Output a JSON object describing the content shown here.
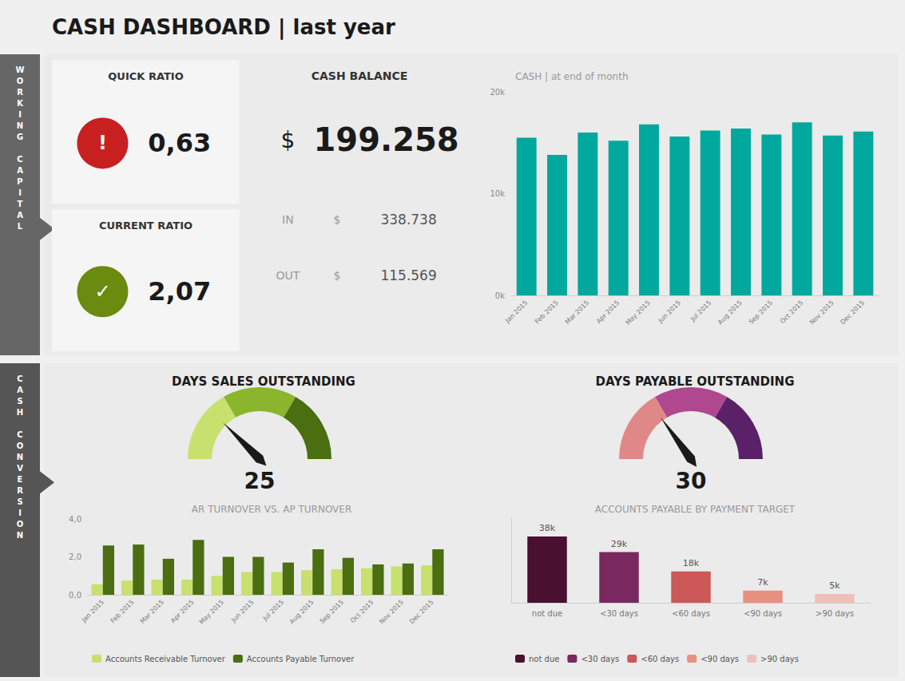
{
  "title": "CASH DASHBOARD | last year",
  "annotations": [
    "WORKING CAPITAL",
    "CASH CONVERSION"
  ],
  "chart_data": [
    {
      "type": "text",
      "title": "QUICK RATIO",
      "annotations": [
        "!",
        "0,63"
      ],
      "color": "#c82020"
    },
    {
      "type": "text",
      "title": "CURRENT RATIO",
      "annotations": [
        "✓",
        "2,07"
      ],
      "color": "#6a8a10"
    },
    {
      "type": "text",
      "title": "CASH BALANCE",
      "annotations": [
        "$",
        "199.258",
        "IN",
        "$",
        "338.738",
        "OUT",
        "$",
        "115.569"
      ]
    },
    {
      "type": "bar",
      "title": "CASH | at end of month",
      "categories": [
        "Jan 2015",
        "Feb 2015",
        "Mar 2015",
        "Apr 2015",
        "May 2015",
        "Jun 2015",
        "Jul 2015",
        "Aug 2015",
        "Sep 2015",
        "Oct 2015",
        "Nov 2015",
        "Dec 2015"
      ],
      "values": [
        15500,
        13800,
        16000,
        15200,
        16800,
        15600,
        16200,
        16400,
        15800,
        17000,
        15700,
        16100
      ],
      "color": "#00a89d",
      "ylim": [
        0,
        20000
      ],
      "yticks": [
        {
          "value": 0,
          "label": "0k"
        },
        {
          "value": 10000,
          "label": "10k"
        },
        {
          "value": 20000,
          "label": "20k"
        }
      ],
      "grid": false
    },
    {
      "type": "gauge",
      "title": "DAYS SALES OUTSTANDING",
      "values": [
        25
      ],
      "colors": [
        "#c8e06e",
        "#8ab52d",
        "#4a6e10"
      ],
      "ylim": [
        0,
        100
      ],
      "tick_labels": false
    },
    {
      "type": "bar",
      "title": "AR TURNOVER VS. AP TURNOVER",
      "categories": [
        "Jan 2015",
        "Feb 2015",
        "Mar 2015",
        "Apr 2015",
        "May 2015",
        "Jun 2015",
        "Jul 2015",
        "Aug 2015",
        "Sep 2015",
        "Oct 2015",
        "Nov 2015",
        "Dec 2015"
      ],
      "series": [
        {
          "name": "Accounts Receivable Turnover",
          "color": "#c8e06e",
          "values": [
            0.55,
            0.75,
            0.8,
            0.8,
            1.0,
            1.2,
            1.2,
            1.3,
            1.35,
            1.4,
            1.5,
            1.55
          ]
        },
        {
          "name": "Accounts Payable Turnover",
          "color": "#4a6e10",
          "values": [
            2.6,
            2.65,
            1.9,
            2.9,
            2.0,
            2.0,
            1.7,
            2.4,
            1.95,
            1.6,
            1.65,
            2.4
          ]
        }
      ],
      "ylim": [
        0,
        4.0
      ],
      "yticks": [
        {
          "value": 0,
          "label": "0,0"
        },
        {
          "value": 2,
          "label": "2,0"
        },
        {
          "value": 4,
          "label": "4,0"
        }
      ],
      "legend": "bottom",
      "grid": false
    },
    {
      "type": "gauge",
      "title": "DAYS PAYABLE OUTSTANDING",
      "values": [
        30
      ],
      "colors": [
        "#e08888",
        "#b04890",
        "#5a2068"
      ],
      "ylim": [
        0,
        100
      ],
      "tick_labels": false
    },
    {
      "type": "bar",
      "title": "ACCOUNTS PAYABLE BY PAYMENT TARGET",
      "categories": [
        "not due",
        "<30 days",
        "<60 days",
        "<90 days",
        ">90 days"
      ],
      "values": [
        38000,
        29000,
        18000,
        7000,
        5000
      ],
      "colors": [
        "#4a1030",
        "#7a2860",
        "#cc5858",
        "#e89080",
        "#f0c0b8"
      ],
      "value_labels": [
        "38k",
        "29k",
        "18k",
        "7k",
        "5k"
      ],
      "data_labels": true,
      "ylim": [
        0,
        48000
      ],
      "tick_labels": "x",
      "legend": "bottom",
      "grid": false
    }
  ]
}
